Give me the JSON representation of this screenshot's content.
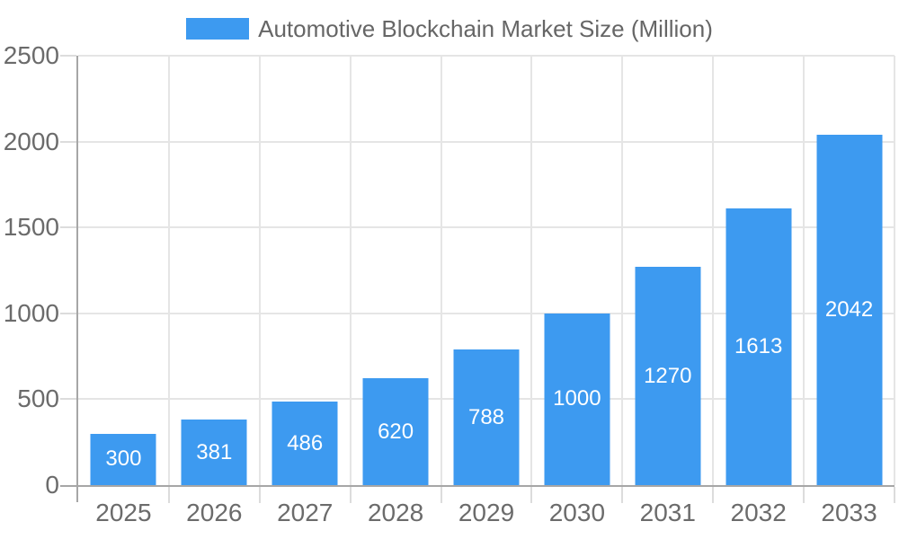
{
  "legend": {
    "label": "Automotive Blockchain Market Size (Million)"
  },
  "chart_data": {
    "type": "bar",
    "title": "Automotive Blockchain Market Size (Million)",
    "categories": [
      "2025",
      "2026",
      "2027",
      "2028",
      "2029",
      "2030",
      "2031",
      "2032",
      "2033"
    ],
    "values": [
      300,
      381,
      486,
      620,
      788,
      1000,
      1270,
      1613,
      2042
    ],
    "xlabel": "",
    "ylabel": "",
    "ylim": [
      0,
      2500
    ],
    "yticks": [
      0,
      500,
      1000,
      1500,
      2000,
      2500
    ],
    "grid": true,
    "legend_position": "top",
    "bar_labels_inside": true
  },
  "colors": {
    "bar": "#3D9AF0",
    "bar_label": "#ffffff",
    "legend_text": "#666666",
    "axis_label": "#6b6b6b",
    "grid": "#e5e5e5",
    "tick": "#dcdcdc",
    "axis_line": "#a6a6a6",
    "background": "#ffffff"
  }
}
